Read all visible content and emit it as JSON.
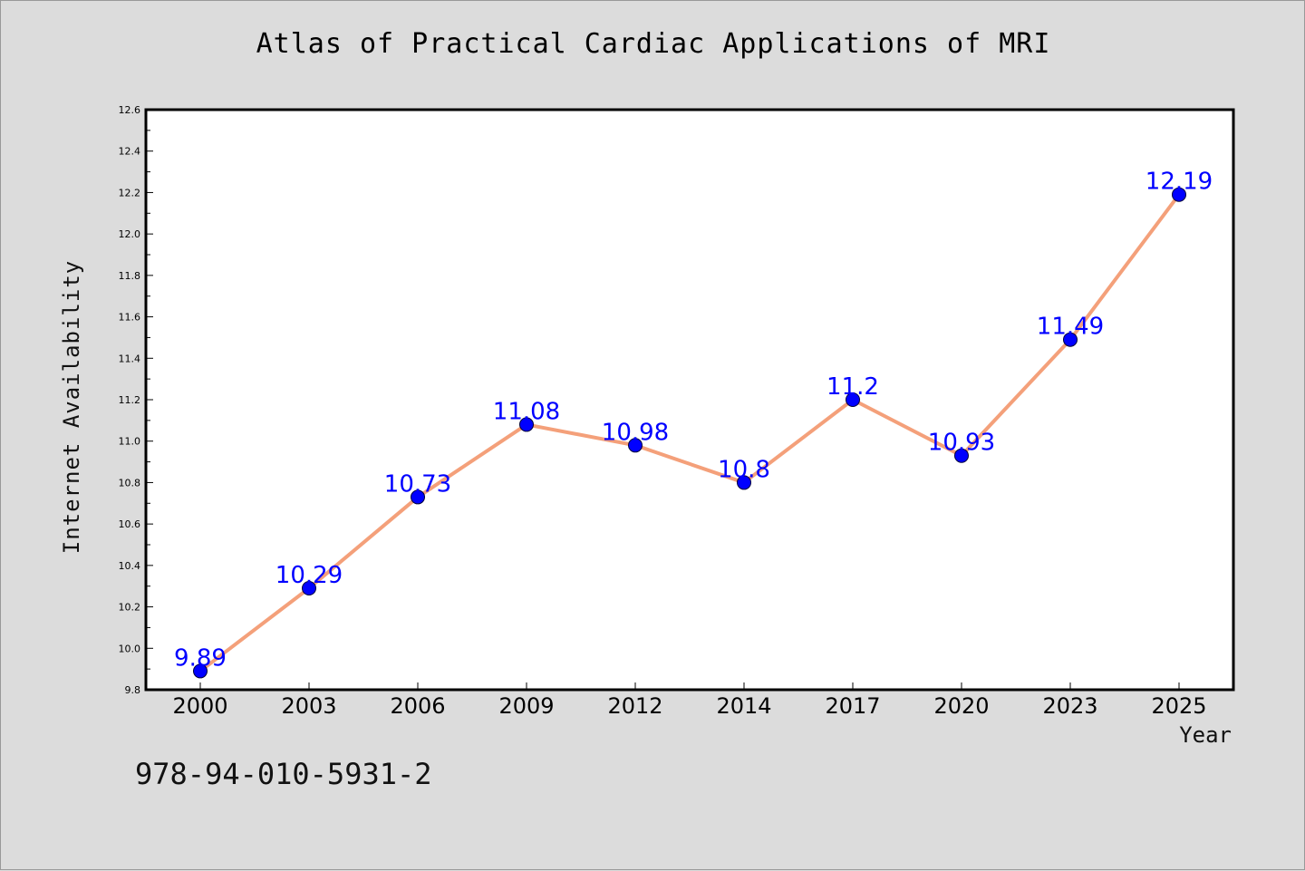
{
  "chart_data": {
    "type": "line",
    "title": "Atlas of Practical Cardiac Applications of MRI",
    "xlabel": "Year",
    "ylabel": "Internet Availability",
    "categories": [
      "2000",
      "2003",
      "2006",
      "2009",
      "2012",
      "2014",
      "2017",
      "2020",
      "2023",
      "2025"
    ],
    "series": [
      {
        "values": [
          9.89,
          10.29,
          10.73,
          11.08,
          10.98,
          10.8,
          11.2,
          10.93,
          11.49,
          12.19
        ],
        "labels": [
          "9.89",
          "10.29",
          "10.73",
          "11.08",
          "10.98",
          "10.8",
          "11.2",
          "10.93",
          "11.49",
          "12.19"
        ]
      }
    ],
    "ylim": [
      9.8,
      12.6
    ],
    "yticks": [
      "9.8",
      "10.0",
      "10.2",
      "10.4",
      "10.6",
      "10.8",
      "11.0",
      "11.2",
      "11.4",
      "11.6",
      "11.8",
      "12.0",
      "12.2",
      "12.4",
      "12.6"
    ],
    "grid": false,
    "colors": {
      "line": "#f4a07a",
      "marker": "#0000ff",
      "label": "#0000ff"
    }
  },
  "footer": {
    "code": "978-94-010-5931-2"
  }
}
